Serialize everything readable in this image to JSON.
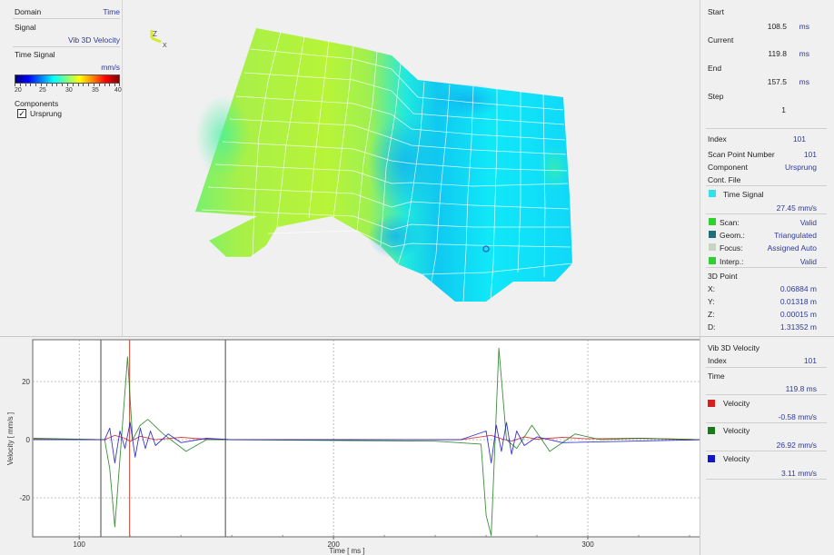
{
  "left_panel": {
    "domain_label": "Domain",
    "domain_value": "Time",
    "signal_label": "Signal",
    "signal_value": "Vib 3D Velocity",
    "display_label": "Time Signal",
    "unit": "mm/s",
    "colorbar": {
      "ticks": [
        "20",
        "25",
        "30",
        "35",
        "40"
      ],
      "min": 20,
      "max": 40
    },
    "components_label": "Components",
    "components": [
      {
        "label": "Ursprung",
        "checked": true,
        "check_glyph": "✓"
      }
    ]
  },
  "view3d": {
    "axis_triad": {
      "z_label": "Z",
      "x_label": "X"
    },
    "selected_point_icon": "circle-marker"
  },
  "info_panel": {
    "start": {
      "label": "Start",
      "value": "108.5",
      "unit": "ms"
    },
    "current": {
      "label": "Current",
      "value": "119.8",
      "unit": "ms"
    },
    "end": {
      "label": "End",
      "value": "157.5",
      "unit": "ms"
    },
    "step": {
      "label": "Step",
      "value": "1"
    },
    "index": {
      "label": "Index",
      "value": "101"
    },
    "scan_point": {
      "label": "Scan Point Number",
      "value": "101"
    },
    "component": {
      "label": "Component",
      "value": "Ursprung"
    },
    "cont_file": {
      "label": "Cont. File"
    },
    "time_signal": {
      "label": "Time Signal",
      "value": "27.45 mm/s",
      "color": "#33e0e8"
    },
    "status": [
      {
        "label": "Scan:",
        "value": "Valid",
        "color": "#2fd12f"
      },
      {
        "label": "Geom.:",
        "value": "Triangulated",
        "color": "#1e6f78"
      },
      {
        "label": "Focus:",
        "value": "Assigned Auto",
        "color": "#c8d4c8"
      },
      {
        "label": "Interp.:",
        "value": "Valid",
        "color": "#2fd12f"
      }
    ],
    "point3d": {
      "label": "3D Point",
      "coords": [
        {
          "label": "X:",
          "value": "0.06884 m"
        },
        {
          "label": "Y:",
          "value": "0.01318 m"
        },
        {
          "label": "Z:",
          "value": "0.00015 m"
        },
        {
          "label": "D:",
          "value": "1.31352 m"
        }
      ]
    }
  },
  "legend_panel": {
    "title": "Vib 3D Velocity",
    "index_label": "Index",
    "index_value": "101",
    "time_label": "Time",
    "time_value": "119.8 ms",
    "series": [
      {
        "label": "Velocity",
        "value": "-0.58 mm/s",
        "color": "#d42020"
      },
      {
        "label": "Velocity",
        "value": "26.92 mm/s",
        "color": "#1a7a1a"
      },
      {
        "label": "Velocity",
        "value": "3.11 mm/s",
        "color": "#1414c8"
      }
    ]
  },
  "chart_data": {
    "type": "line",
    "title": "",
    "xlabel": "Time [ ms ]",
    "ylabel": "Velocity [ mm/s ]",
    "xlim": [
      81.7,
      345
    ],
    "ylim": [
      -33.4,
      34.4
    ],
    "x_ticks": [
      "100",
      "200",
      "300"
    ],
    "y_ticks": [
      "20",
      "0",
      "-20"
    ],
    "grid": true,
    "cursors": {
      "start": 108.5,
      "current": 119.8,
      "end": 157.5
    },
    "series": [
      {
        "name": "Velocity (red)",
        "color": "#d42020",
        "x": [
          82,
          110,
          114,
          118,
          120,
          124,
          130,
          140,
          150,
          160,
          250,
          262,
          266,
          270,
          275,
          280,
          290,
          300,
          320,
          345
        ],
        "y": [
          0.3,
          0,
          1.5,
          0.5,
          -0.6,
          1.2,
          0,
          0.8,
          0.2,
          0,
          0,
          1.5,
          0.3,
          -0.5,
          1.0,
          0.2,
          0.8,
          0.3,
          0.5,
          0
        ]
      },
      {
        "name": "Velocity (green)",
        "color": "#1a7a1a",
        "x": [
          82,
          110,
          112,
          114,
          119,
          121,
          124,
          127,
          133,
          142,
          150,
          160,
          240,
          258,
          260,
          262,
          265,
          268,
          272,
          278,
          285,
          295,
          305,
          320,
          345
        ],
        "y": [
          0.5,
          0,
          -10,
          -30,
          28.5,
          0,
          5,
          7,
          2,
          -4,
          0,
          0,
          -0.5,
          -1.5,
          -26,
          -33,
          31.5,
          0,
          -3,
          5,
          -4,
          2,
          0,
          0.5,
          0
        ]
      },
      {
        "name": "Velocity (blue)",
        "color": "#1414c8",
        "x": [
          82,
          110,
          112,
          114,
          116,
          118,
          120,
          122,
          124,
          126,
          128,
          130,
          135,
          140,
          150,
          160,
          250,
          260,
          262,
          264,
          266,
          268,
          270,
          272,
          275,
          280,
          290,
          345
        ],
        "y": [
          0,
          0,
          4,
          -8,
          3,
          -3,
          6,
          -6,
          4,
          -3,
          3,
          -2,
          2,
          -1,
          0.5,
          0,
          0,
          3,
          -8,
          5,
          -4,
          6,
          -5,
          3,
          -2,
          1,
          -1,
          0
        ]
      }
    ]
  }
}
